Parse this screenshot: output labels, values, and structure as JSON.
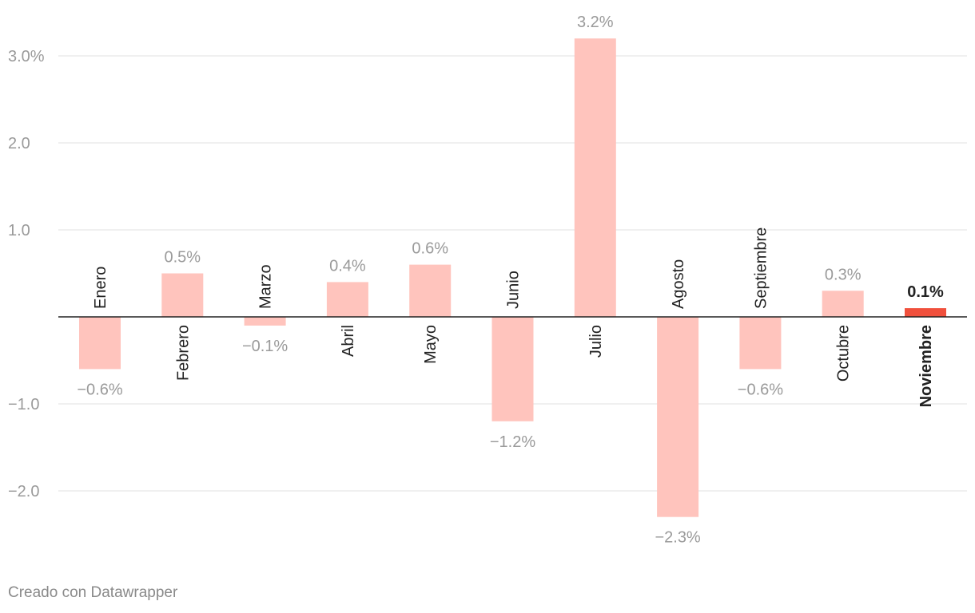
{
  "chart_data": {
    "type": "bar",
    "categories": [
      "Enero",
      "Febrero",
      "Marzo",
      "Abril",
      "Mayo",
      "Junio",
      "Julio",
      "Agosto",
      "Septiembre",
      "Octubre",
      "Noviembre"
    ],
    "values": [
      -0.6,
      0.5,
      -0.1,
      0.4,
      0.6,
      -1.2,
      3.2,
      -2.3,
      -0.6,
      0.3,
      0.1
    ],
    "value_labels": [
      "−0.6%",
      "0.5%",
      "−0.1%",
      "0.4%",
      "0.6%",
      "−1.2%",
      "3.2%",
      "−2.3%",
      "−0.6%",
      "0.3%",
      "0.1%"
    ],
    "highlight_index": 10,
    "ylim": [
      -2.6,
      3.5
    ],
    "yticks": [
      {
        "value": 3.0,
        "label": "3.0%"
      },
      {
        "value": 2.0,
        "label": "2.0"
      },
      {
        "value": 1.0,
        "label": "1.0"
      },
      {
        "value": -1.0,
        "label": "−1.0"
      },
      {
        "value": -2.0,
        "label": "−2.0"
      }
    ],
    "grid": true,
    "colors": {
      "bar": "#ffc4bd",
      "highlight": "#f0503c",
      "grid": "#e0e0e0",
      "axis": "#222222",
      "tick_label": "#9a9a9a",
      "value_label": "#9a9a9a",
      "category_label": "#222222"
    }
  },
  "footer": {
    "credit": "Creado con Datawrapper"
  }
}
